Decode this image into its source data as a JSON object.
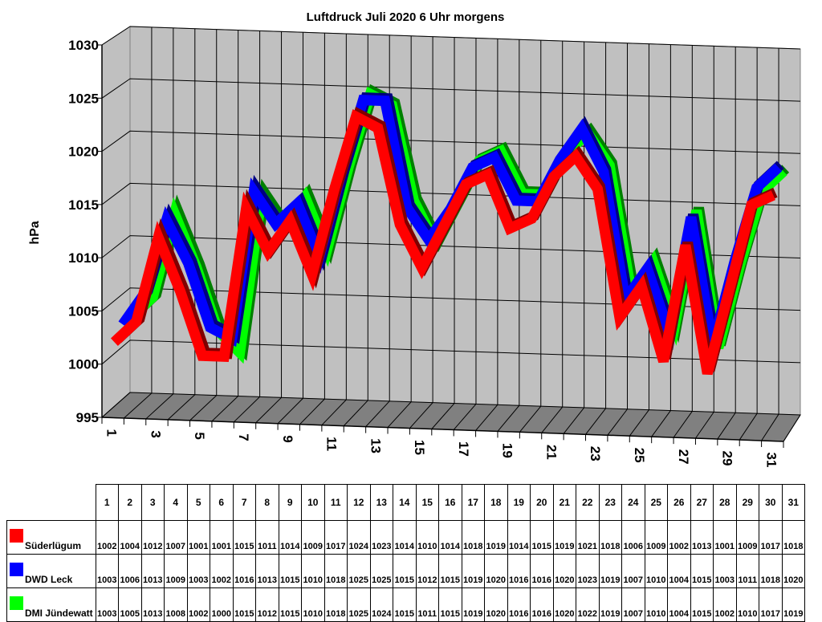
{
  "chart_data": {
    "type": "line",
    "title": "Luftdruck Juli 2020 6 Uhr morgens",
    "ylabel": "hPa",
    "xlabel": "",
    "ylim": [
      995,
      1030
    ],
    "yticks": [
      995,
      1000,
      1005,
      1010,
      1015,
      1020,
      1025,
      1030
    ],
    "categories": [
      "1",
      "2",
      "3",
      "4",
      "5",
      "6",
      "7",
      "8",
      "9",
      "10",
      "11",
      "12",
      "13",
      "14",
      "15",
      "16",
      "17",
      "18",
      "19",
      "20",
      "21",
      "22",
      "23",
      "24",
      "25",
      "26",
      "27",
      "28",
      "29",
      "30",
      "31"
    ],
    "x_tick_labels_shown": [
      "1",
      "3",
      "5",
      "7",
      "9",
      "11",
      "13",
      "15",
      "17",
      "19",
      "21",
      "23",
      "25",
      "27",
      "29",
      "31"
    ],
    "grid": true,
    "style": "3d",
    "legend": "data-table",
    "series": [
      {
        "name": "Süderlügum",
        "color": "#ff0000",
        "values": [
          1002,
          1004,
          1012,
          1007,
          1001,
          1001,
          1015,
          1011,
          1014,
          1009,
          1017,
          1024,
          1023,
          1014,
          1010,
          1014,
          1018,
          1019,
          1014,
          1015,
          1019,
          1021,
          1018,
          1006,
          1009,
          1002,
          1013,
          1001,
          1009,
          1017,
          1018
        ]
      },
      {
        "name": "DWD Leck",
        "color": "#0000ff",
        "values": [
          1003,
          1006,
          1013,
          1009,
          1003,
          1002,
          1016,
          1013,
          1015,
          1010,
          1018,
          1025,
          1025,
          1015,
          1012,
          1015,
          1019,
          1020,
          1016,
          1016,
          1020,
          1023,
          1019,
          1007,
          1010,
          1004,
          1015,
          1003,
          1011,
          1018,
          1020
        ]
      },
      {
        "name": "DMI Jündewatt",
        "color": "#00ff00",
        "values": [
          1003,
          1005,
          1013,
          1008,
          1002,
          1000,
          1015,
          1012,
          1015,
          1010,
          1018,
          1025,
          1024,
          1015,
          1011,
          1015,
          1019,
          1020,
          1016,
          1016,
          1020,
          1022,
          1019,
          1007,
          1010,
          1004,
          1015,
          1002,
          1010,
          1017,
          1019
        ]
      }
    ],
    "wall_color": "#c0c0c0",
    "floor_color": "#808080"
  }
}
